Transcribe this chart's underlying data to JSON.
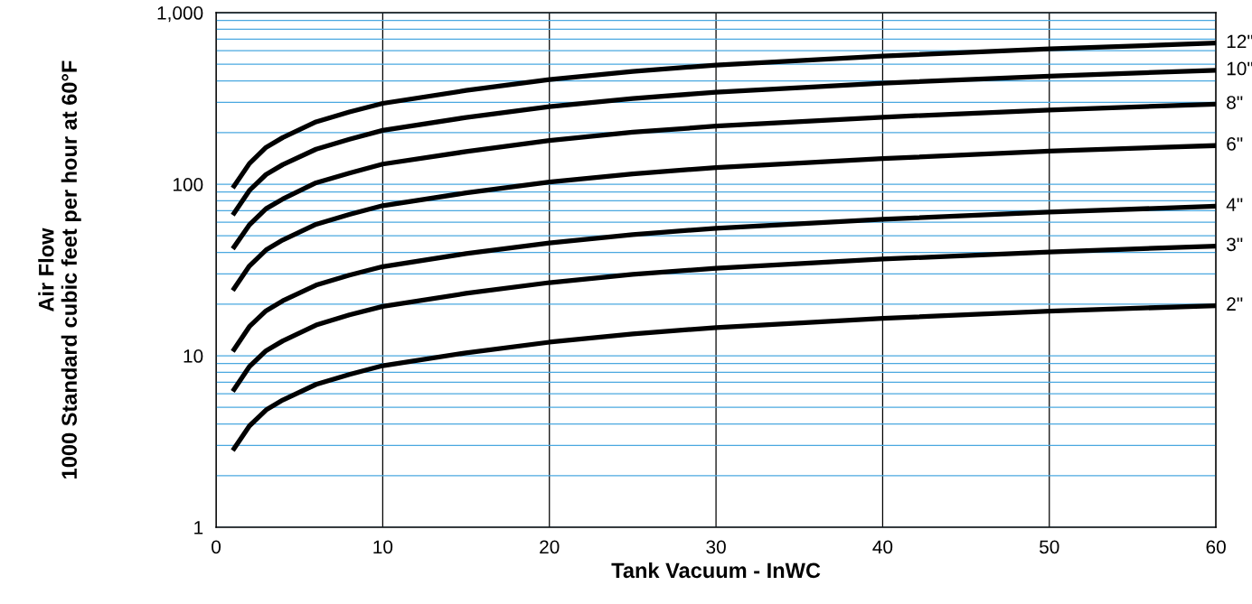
{
  "chart_data": {
    "type": "line",
    "xlabel": "Tank Vacuum - InWC",
    "ylabel": "Air Flow\n1000 Standard cubic feet per hour at 60°F",
    "x": [
      1,
      2,
      3,
      4,
      6,
      8,
      10,
      15,
      20,
      25,
      30,
      40,
      50,
      60
    ],
    "series": [
      {
        "name": "12\"",
        "color": "#000000",
        "values": [
          95,
          132,
          164,
          187,
          231,
          264,
          296,
          352,
          407,
          455,
          495,
          558,
          615,
          665
        ]
      },
      {
        "name": "10\"",
        "color": "#000000",
        "values": [
          66,
          92,
          114,
          130,
          160,
          183,
          206,
          245,
          283,
          316,
          344,
          388,
          427,
          462
        ]
      },
      {
        "name": "8\"",
        "color": "#000000",
        "values": [
          42,
          58,
          72,
          82,
          102,
          116,
          131,
          155,
          180,
          201,
          218,
          246,
          271,
          293
        ]
      },
      {
        "name": "6\"",
        "color": "#000000",
        "values": [
          24,
          33.4,
          41.4,
          47.3,
          58.4,
          66.7,
          75,
          89,
          103,
          115,
          125,
          141,
          156,
          168
        ]
      },
      {
        "name": "4\"",
        "color": "#000000",
        "values": [
          10.6,
          14.8,
          18.3,
          20.9,
          25.8,
          29.5,
          33.1,
          39.4,
          45.5,
          50.8,
          55.4,
          62.4,
          68.8,
          74.4
        ]
      },
      {
        "name": "3\"",
        "color": "#000000",
        "values": [
          6.2,
          8.65,
          10.7,
          12.2,
          15.1,
          17.3,
          19.4,
          23.1,
          26.7,
          29.8,
          32.4,
          36.6,
          40.3,
          43.6
        ]
      },
      {
        "name": "2\"",
        "color": "#000000",
        "values": [
          2.8,
          3.9,
          4.83,
          5.52,
          6.81,
          7.78,
          8.75,
          10.4,
          12.0,
          13.4,
          14.6,
          16.5,
          18.2,
          19.6
        ]
      }
    ],
    "log": "y",
    "xlim": [
      0,
      60
    ],
    "xticks": [
      0,
      10,
      20,
      30,
      40,
      50,
      60
    ],
    "ylim": [
      1,
      1000
    ],
    "yticks": [
      1,
      10,
      100,
      {
        "value": 1000,
        "label": "1,000"
      }
    ],
    "grid": true,
    "legend": false,
    "marker": "none",
    "line_style": "solid"
  }
}
